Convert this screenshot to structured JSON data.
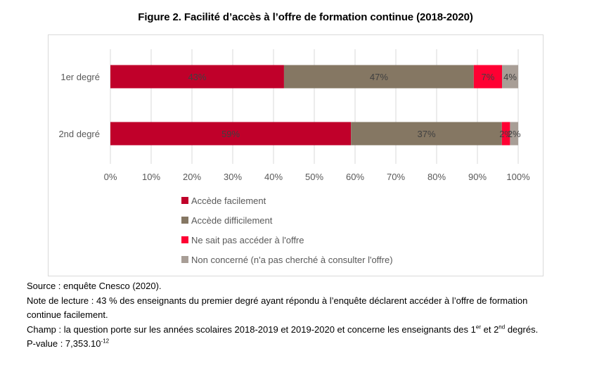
{
  "chart_data": {
    "type": "bar",
    "orientation": "horizontal",
    "stacked": "percent",
    "title": "Figure 2. Facilité d’accès à l’offre de formation continue (2018-2020)",
    "categories": [
      "1er degré",
      "2nd degré"
    ],
    "series": [
      {
        "name": "Accède facilement",
        "color": "#c0002a",
        "values": [
          43,
          59
        ],
        "labels": [
          "43%",
          "59%"
        ]
      },
      {
        "name": "Accède difficilement",
        "color": "#857763",
        "values": [
          47,
          37
        ],
        "labels": [
          "47%",
          "37%"
        ]
      },
      {
        "name": "Ne sait pas accéder à l'offre",
        "color": "#ff0033",
        "values": [
          7,
          2
        ],
        "labels": [
          "7%",
          "2%"
        ]
      },
      {
        "name": "Non concerné (n'a pas cherché à consulter l'offre)",
        "color": "#a89e96",
        "values": [
          4,
          2
        ],
        "labels": [
          "4%",
          "2%"
        ]
      }
    ],
    "xlim": [
      0,
      100
    ],
    "x_ticks": [
      "0%",
      "10%",
      "20%",
      "30%",
      "40%",
      "50%",
      "60%",
      "70%",
      "80%",
      "90%",
      "100%"
    ],
    "xlabel": "",
    "ylabel": "",
    "grid": "vertical",
    "legend_position": "bottom"
  },
  "notes": {
    "source": "Source : enquête Cnesco (2020).",
    "reading_note_line1": "Note de lecture : 43 % des enseignants du premier degré ayant répondu à l’enquête déclarent accéder à l’offre de formation",
    "reading_note_line2": "continue facilement.",
    "scope_prefix": "Champ : la question porte sur les années scolaires 2018-2019 et 2019-2020 et concerne les enseignants des 1",
    "scope_sup1": "er",
    "scope_mid": " et 2",
    "scope_sup2": "nd",
    "scope_suffix": " degrés.",
    "pvalue_prefix": "P-value : 7,353.10",
    "pvalue_exp": "-12"
  }
}
